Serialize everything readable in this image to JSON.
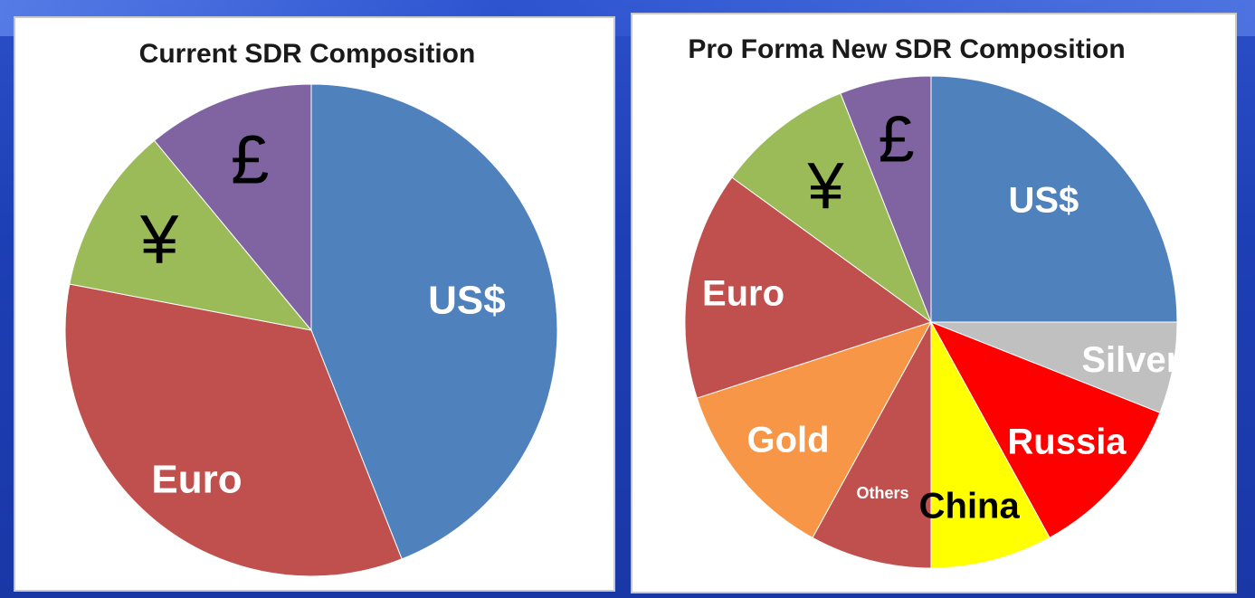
{
  "chart_data": [
    {
      "type": "pie",
      "title": "Current SDR Composition",
      "slices": [
        {
          "label": "US$",
          "value": 44,
          "color": "#4f81bd",
          "text_color": "#ffffff",
          "label_style": "white-bold"
        },
        {
          "label": "Euro",
          "value": 34,
          "color": "#c0504d",
          "text_color": "#ffffff",
          "label_style": "white-bold"
        },
        {
          "label": "¥",
          "value": 11,
          "color": "#9bbb59",
          "text_color": "#000000",
          "label_style": "symbol"
        },
        {
          "label": "£",
          "value": 11,
          "color": "#8064a2",
          "text_color": "#000000",
          "label_style": "symbol"
        }
      ],
      "start_angle_deg": 0,
      "direction": "clockwise"
    },
    {
      "type": "pie",
      "title": "Pro Forma New SDR Composition",
      "slices": [
        {
          "label": "US$",
          "value": 25,
          "color": "#4f81bd",
          "text_color": "#ffffff",
          "label_style": "white-bold"
        },
        {
          "label": "Silver",
          "value": 6,
          "color": "#c0c0c0",
          "text_color": "#ffffff",
          "label_style": "white-bold"
        },
        {
          "label": "Russia",
          "value": 11,
          "color": "#ff0000",
          "text_color": "#ffffff",
          "label_style": "white-bold"
        },
        {
          "label": "China",
          "value": 8,
          "color": "#ffff00",
          "text_color": "#000000",
          "label_style": "black-bold"
        },
        {
          "label": "Others",
          "value": 8,
          "color": "#c0504d",
          "text_color": "#ffffff",
          "label_style": "small"
        },
        {
          "label": "Gold",
          "value": 12,
          "color": "#f79646",
          "text_color": "#ffffff",
          "label_style": "white-bold"
        },
        {
          "label": "Euro",
          "value": 15,
          "color": "#c0504d",
          "text_color": "#ffffff",
          "label_style": "white-bold"
        },
        {
          "label": "¥",
          "value": 9,
          "color": "#9bbb59",
          "text_color": "#000000",
          "label_style": "symbol"
        },
        {
          "label": "£",
          "value": 6,
          "color": "#8064a2",
          "text_color": "#000000",
          "label_style": "symbol"
        }
      ],
      "start_angle_deg": 0,
      "direction": "clockwise"
    }
  ]
}
